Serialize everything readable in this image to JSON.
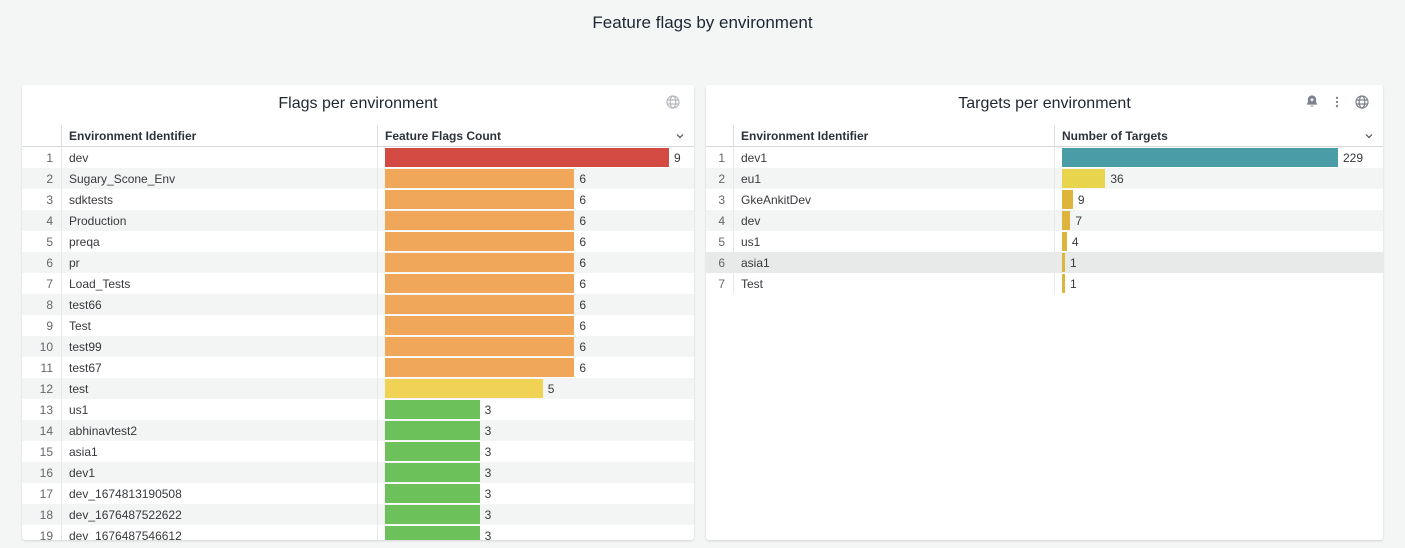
{
  "page": {
    "title": "Feature flags by environment"
  },
  "colors": {
    "page_background": "#f4f5f5",
    "panel_background": "#ffffff",
    "red": "#d24a41",
    "orange": "#f0a75a",
    "yellow": "#f0d254",
    "green": "#6cc15b",
    "teal": "#4a9ca6",
    "bright_yellow": "#e8d44d",
    "gold": "#ddb53c"
  },
  "panels": [
    {
      "title": "Flags per environment",
      "header_icons": [
        "globe-icon"
      ],
      "columns": {
        "name": "Environment Identifier",
        "value": "Feature Flags Count"
      },
      "max": 9,
      "rows": [
        {
          "n": 1,
          "name": "dev",
          "value": 9,
          "color": "#d24a41"
        },
        {
          "n": 2,
          "name": "Sugary_Scone_Env",
          "value": 6,
          "color": "#f0a75a"
        },
        {
          "n": 3,
          "name": "sdktests",
          "value": 6,
          "color": "#f0a75a"
        },
        {
          "n": 4,
          "name": "Production",
          "value": 6,
          "color": "#f0a75a"
        },
        {
          "n": 5,
          "name": "preqa",
          "value": 6,
          "color": "#f0a75a"
        },
        {
          "n": 6,
          "name": "pr",
          "value": 6,
          "color": "#f0a75a"
        },
        {
          "n": 7,
          "name": "Load_Tests",
          "value": 6,
          "color": "#f0a75a"
        },
        {
          "n": 8,
          "name": "test66",
          "value": 6,
          "color": "#f0a75a"
        },
        {
          "n": 9,
          "name": "Test",
          "value": 6,
          "color": "#f0a75a"
        },
        {
          "n": 10,
          "name": "test99",
          "value": 6,
          "color": "#f0a75a"
        },
        {
          "n": 11,
          "name": "test67",
          "value": 6,
          "color": "#f0a75a"
        },
        {
          "n": 12,
          "name": "test",
          "value": 5,
          "color": "#f0d254"
        },
        {
          "n": 13,
          "name": "us1",
          "value": 3,
          "color": "#6cc15b"
        },
        {
          "n": 14,
          "name": "abhinavtest2",
          "value": 3,
          "color": "#6cc15b"
        },
        {
          "n": 15,
          "name": "asia1",
          "value": 3,
          "color": "#6cc15b"
        },
        {
          "n": 16,
          "name": "dev1",
          "value": 3,
          "color": "#6cc15b"
        },
        {
          "n": 17,
          "name": "dev_1674813190508",
          "value": 3,
          "color": "#6cc15b"
        },
        {
          "n": 18,
          "name": "dev_1676487522622",
          "value": 3,
          "color": "#6cc15b"
        },
        {
          "n": 19,
          "name": "dev_1676487546612",
          "value": 3,
          "color": "#6cc15b"
        }
      ]
    },
    {
      "title": "Targets per environment",
      "header_icons": [
        "bell-plus-icon",
        "kebab-menu-icon",
        "globe-icon"
      ],
      "columns": {
        "name": "Environment Identifier",
        "value": "Number of Targets"
      },
      "max": 229,
      "rows": [
        {
          "n": 1,
          "name": "dev1",
          "value": 229,
          "color": "#4a9ca6"
        },
        {
          "n": 2,
          "name": "eu1",
          "value": 36,
          "color": "#e8d44d"
        },
        {
          "n": 3,
          "name": "GkeAnkitDev",
          "value": 9,
          "color": "#ddb53c"
        },
        {
          "n": 4,
          "name": "dev",
          "value": 7,
          "color": "#ddb53c"
        },
        {
          "n": 5,
          "name": "us1",
          "value": 4,
          "color": "#ddb53c"
        },
        {
          "n": 6,
          "name": "asia1",
          "value": 1,
          "color": "#ddb53c",
          "highlight": true
        },
        {
          "n": 7,
          "name": "Test",
          "value": 1,
          "color": "#ddb53c"
        }
      ]
    }
  ],
  "chart_data": [
    {
      "type": "bar",
      "orientation": "horizontal",
      "title": "Flags per environment",
      "xlabel": "Feature Flags Count",
      "ylabel": "Environment Identifier",
      "xlim": [
        0,
        9
      ],
      "categories": [
        "dev",
        "Sugary_Scone_Env",
        "sdktests",
        "Production",
        "preqa",
        "pr",
        "Load_Tests",
        "test66",
        "Test",
        "test99",
        "test67",
        "test",
        "us1",
        "abhinavtest2",
        "asia1",
        "dev1",
        "dev_1674813190508",
        "dev_1676487522622",
        "dev_1676487546612"
      ],
      "values": [
        9,
        6,
        6,
        6,
        6,
        6,
        6,
        6,
        6,
        6,
        6,
        5,
        3,
        3,
        3,
        3,
        3,
        3,
        3
      ]
    },
    {
      "type": "bar",
      "orientation": "horizontal",
      "title": "Targets per environment",
      "xlabel": "Number of Targets",
      "ylabel": "Environment Identifier",
      "xlim": [
        0,
        229
      ],
      "categories": [
        "dev1",
        "eu1",
        "GkeAnkitDev",
        "dev",
        "us1",
        "asia1",
        "Test"
      ],
      "values": [
        229,
        36,
        9,
        7,
        4,
        1,
        1
      ]
    }
  ]
}
